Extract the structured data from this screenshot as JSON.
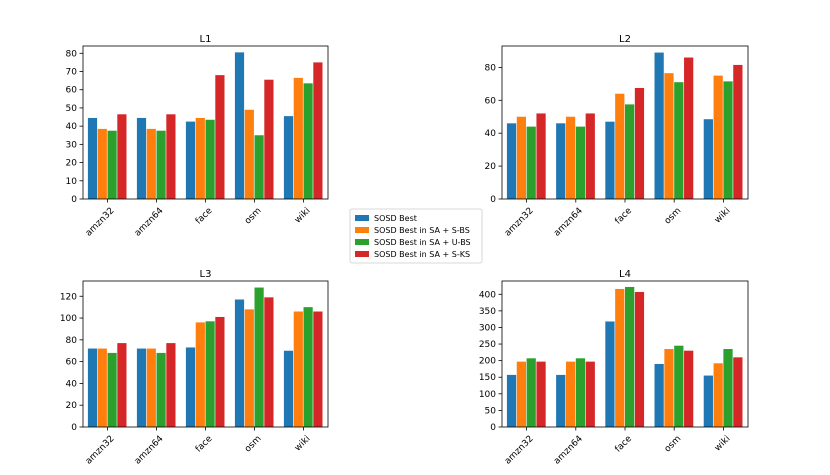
{
  "series_colors": [
    "#1f77b4",
    "#ff7f0e",
    "#2ca02c",
    "#d62728"
  ],
  "legend": {
    "location": "center",
    "items": [
      "SOSD Best",
      "SOSD Best in SA + S-BS",
      "SOSD Best in SA  + U-BS",
      "SOSD Best in SA  + S-KS"
    ]
  },
  "chart_data": [
    {
      "type": "bar",
      "title": "L1",
      "categories": [
        "amzn32",
        "amzn64",
        "face",
        "osm",
        "wiki"
      ],
      "ylim": [
        0,
        84
      ],
      "yticks": [
        0,
        10,
        20,
        30,
        40,
        50,
        60,
        70,
        80
      ],
      "series": [
        {
          "name": "SOSD Best",
          "values": [
            44.5,
            44.5,
            42.5,
            80.5,
            45.5
          ]
        },
        {
          "name": "SOSD Best in SA + S-BS",
          "values": [
            38.5,
            38.5,
            44.5,
            49,
            66.5
          ]
        },
        {
          "name": "SOSD Best in SA  + U-BS",
          "values": [
            37.5,
            37.5,
            43.5,
            35,
            63.5
          ]
        },
        {
          "name": "SOSD Best in SA  + S-KS",
          "values": [
            46.5,
            46.5,
            68,
            65.5,
            75
          ]
        }
      ]
    },
    {
      "type": "bar",
      "title": "L2",
      "categories": [
        "amzn32",
        "amzn64",
        "face",
        "osm",
        "wiki"
      ],
      "ylim": [
        0,
        93
      ],
      "yticks": [
        0,
        20,
        40,
        60,
        80
      ],
      "series": [
        {
          "name": "SOSD Best",
          "values": [
            46,
            46,
            47,
            89,
            48.5
          ]
        },
        {
          "name": "SOSD Best in SA + S-BS",
          "values": [
            50,
            50,
            64,
            76.5,
            75
          ]
        },
        {
          "name": "SOSD Best in SA  + U-BS",
          "values": [
            44,
            44,
            57.5,
            71,
            71.5
          ]
        },
        {
          "name": "SOSD Best in SA  + S-KS",
          "values": [
            52,
            52,
            67.5,
            86,
            81.5
          ]
        }
      ]
    },
    {
      "type": "bar",
      "title": "L3",
      "categories": [
        "amzn32",
        "amzn64",
        "face",
        "osm",
        "wiki"
      ],
      "ylim": [
        0,
        134
      ],
      "yticks": [
        0,
        20,
        40,
        60,
        80,
        100,
        120
      ],
      "series": [
        {
          "name": "SOSD Best",
          "values": [
            72,
            72,
            73,
            117,
            70
          ]
        },
        {
          "name": "SOSD Best in SA + S-BS",
          "values": [
            72,
            72,
            96,
            108,
            106
          ]
        },
        {
          "name": "SOSD Best in SA  + U-BS",
          "values": [
            68,
            68,
            97,
            128,
            110
          ]
        },
        {
          "name": "SOSD Best in SA  + S-KS",
          "values": [
            77,
            77,
            101,
            119,
            106
          ]
        }
      ]
    },
    {
      "type": "bar",
      "title": "L4",
      "categories": [
        "amzn32",
        "amzn64",
        "face",
        "osm",
        "wiki"
      ],
      "ylim": [
        0,
        440
      ],
      "yticks": [
        0,
        50,
        100,
        150,
        200,
        250,
        300,
        350,
        400
      ],
      "series": [
        {
          "name": "SOSD Best",
          "values": [
            157,
            157,
            318,
            190,
            155
          ]
        },
        {
          "name": "SOSD Best in SA + S-BS",
          "values": [
            197,
            197,
            416,
            235,
            192
          ]
        },
        {
          "name": "SOSD Best in SA  + U-BS",
          "values": [
            207,
            207,
            422,
            245,
            235
          ]
        },
        {
          "name": "SOSD Best in SA  + S-KS",
          "values": [
            197,
            197,
            407,
            230,
            210
          ]
        }
      ]
    }
  ]
}
